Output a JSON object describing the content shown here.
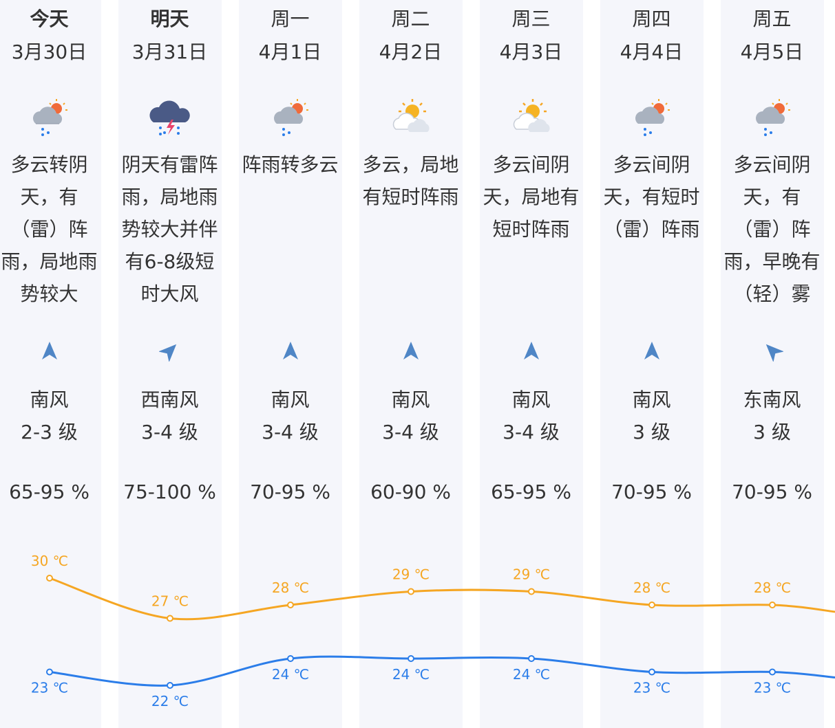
{
  "days": [
    {
      "name": "今天",
      "date": "3月30日",
      "icon": "cloudy-sun-rain-icon",
      "desc": "多云转阴天，有（雷）阵雨，局地雨势较大",
      "wind_dir": "南风",
      "wind_level": "2-3 级",
      "humidity": "65-95 %",
      "high": "30 ℃",
      "low": "23 ℃"
    },
    {
      "name": "明天",
      "date": "3月31日",
      "icon": "thunderstorm-icon",
      "desc": "阴天有雷阵雨，局地雨势较大并伴有6-8级短时大风",
      "wind_dir": "西南风",
      "wind_level": "3-4 级",
      "humidity": "75-100 %",
      "high": "27 ℃",
      "low": "22 ℃"
    },
    {
      "name": "周一",
      "date": "4月1日",
      "icon": "cloudy-sun-rain-icon",
      "desc": "阵雨转多云",
      "wind_dir": "南风",
      "wind_level": "3-4 级",
      "humidity": "70-95 %",
      "high": "28 ℃",
      "low": "24 ℃"
    },
    {
      "name": "周二",
      "date": "4月2日",
      "icon": "partly-cloudy-icon",
      "desc": "多云，局地有短时阵雨",
      "wind_dir": "南风",
      "wind_level": "3-4 级",
      "humidity": "60-90 %",
      "high": "29 ℃",
      "low": "24 ℃"
    },
    {
      "name": "周三",
      "date": "4月3日",
      "icon": "partly-cloudy-icon",
      "desc": "多云间阴天，局地有短时阵雨",
      "wind_dir": "南风",
      "wind_level": "3-4 级",
      "humidity": "65-95 %",
      "high": "29 ℃",
      "low": "24 ℃"
    },
    {
      "name": "周四",
      "date": "4月4日",
      "icon": "cloudy-sun-rain-icon",
      "desc": "多云间阴天，有短时（雷）阵雨",
      "wind_dir": "南风",
      "wind_level": "3 级",
      "humidity": "70-95 %",
      "high": "28 ℃",
      "low": "23 ℃"
    },
    {
      "name": "周五",
      "date": "4月5日",
      "icon": "cloudy-sun-rain-icon",
      "desc": "多云间阴天，有（雷）阵雨，早晚有（轻）雾",
      "wind_dir": "东南风",
      "wind_level": "3 级",
      "humidity": "70-95 %",
      "high": "28 ℃",
      "low": "23 ℃"
    }
  ],
  "chart_data": {
    "type": "line",
    "categories": [
      "今天",
      "明天",
      "周一",
      "周二",
      "周三",
      "周四",
      "周五"
    ],
    "series": [
      {
        "values": [
          30,
          27,
          28,
          29,
          29,
          28,
          28
        ],
        "color": "#f5a623"
      },
      {
        "values": [
          23,
          22,
          24,
          24,
          24,
          23,
          23
        ],
        "color": "#2b7de9"
      }
    ]
  },
  "colors": {
    "high": "#f5a623",
    "low": "#2b7de9",
    "arrow": "#4f86c6",
    "column_bg": "#f5f6fb"
  }
}
